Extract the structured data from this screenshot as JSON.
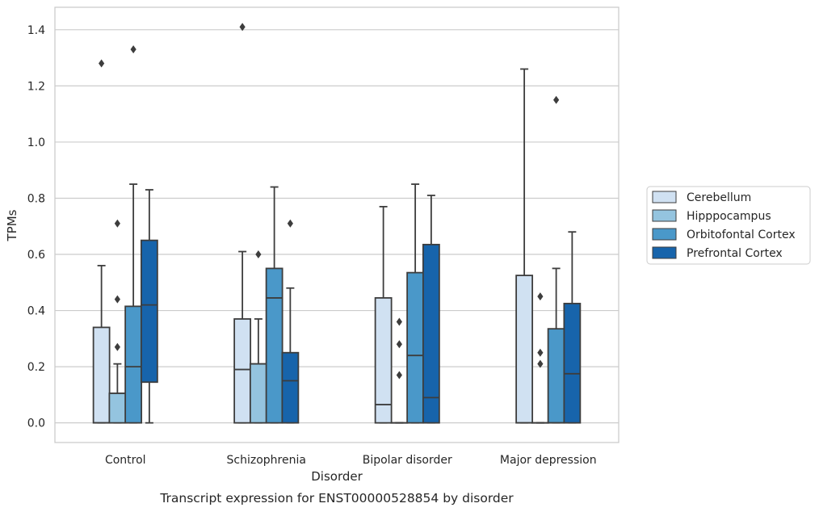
{
  "caption": "Transcript expression for ENST00000528854 by disorder",
  "chart_data": {
    "type": "box",
    "xlabel": "Disorder",
    "ylabel": "TPMs",
    "ylim": [
      -0.07,
      1.48
    ],
    "yticks": [
      "0.0",
      "0.2",
      "0.4",
      "0.6",
      "0.8",
      "1.0",
      "1.2",
      "1.4"
    ],
    "ytick_values": [
      0.0,
      0.2,
      0.4,
      0.6,
      0.8,
      1.0,
      1.2,
      1.4
    ],
    "grid": "horizontal",
    "legend_position": "right",
    "categories": [
      "Control",
      "Schizophrenia",
      "Bipolar disorder",
      "Major depression"
    ],
    "series": [
      {
        "name": "Cerebellum",
        "color": "#d0e1f2",
        "boxes": [
          {
            "whislo": 0.0,
            "q1": 0.0,
            "med": 0.0,
            "q3": 0.34,
            "whishi": 0.56,
            "fliers": [
              1.28
            ]
          },
          {
            "whislo": 0.0,
            "q1": 0.0,
            "med": 0.19,
            "q3": 0.37,
            "whishi": 0.61,
            "fliers": [
              1.41
            ]
          },
          {
            "whislo": 0.0,
            "q1": 0.0,
            "med": 0.065,
            "q3": 0.445,
            "whishi": 0.77,
            "fliers": []
          },
          {
            "whislo": 0.0,
            "q1": 0.0,
            "med": 0.0,
            "q3": 0.525,
            "whishi": 1.26,
            "fliers": []
          }
        ]
      },
      {
        "name": "Hipppocampus",
        "color": "#94c4df",
        "boxes": [
          {
            "whislo": 0.0,
            "q1": 0.0,
            "med": 0.105,
            "q3": 0.105,
            "whishi": 0.21,
            "fliers": [
              0.27,
              0.44,
              0.71
            ]
          },
          {
            "whislo": 0.0,
            "q1": 0.0,
            "med": 0.21,
            "q3": 0.21,
            "whishi": 0.37,
            "fliers": [
              0.6
            ]
          },
          {
            "whislo": 0.0,
            "q1": 0.0,
            "med": 0.0,
            "q3": 0.0,
            "whishi": 0.0,
            "fliers": [
              0.17,
              0.28,
              0.36
            ]
          },
          {
            "whislo": 0.0,
            "q1": 0.0,
            "med": 0.0,
            "q3": 0.0,
            "whishi": 0.0,
            "fliers": [
              0.21,
              0.25,
              0.45
            ]
          }
        ]
      },
      {
        "name": "Orbitofontal Cortex",
        "color": "#4a98c9",
        "boxes": [
          {
            "whislo": 0.0,
            "q1": 0.0,
            "med": 0.2,
            "q3": 0.415,
            "whishi": 0.85,
            "fliers": [
              1.33
            ]
          },
          {
            "whislo": 0.0,
            "q1": 0.0,
            "med": 0.445,
            "q3": 0.55,
            "whishi": 0.84,
            "fliers": []
          },
          {
            "whislo": 0.0,
            "q1": 0.0,
            "med": 0.24,
            "q3": 0.535,
            "whishi": 0.85,
            "fliers": []
          },
          {
            "whislo": 0.0,
            "q1": 0.0,
            "med": 0.0,
            "q3": 0.335,
            "whishi": 0.55,
            "fliers": [
              1.15
            ]
          }
        ]
      },
      {
        "name": "Prefrontal Cortex",
        "color": "#1764ab",
        "boxes": [
          {
            "whislo": 0.0,
            "q1": 0.145,
            "med": 0.42,
            "q3": 0.65,
            "whishi": 0.83,
            "fliers": []
          },
          {
            "whislo": 0.0,
            "q1": 0.0,
            "med": 0.15,
            "q3": 0.25,
            "whishi": 0.48,
            "fliers": [
              0.71
            ]
          },
          {
            "whislo": 0.0,
            "q1": 0.0,
            "med": 0.09,
            "q3": 0.635,
            "whishi": 0.81,
            "fliers": []
          },
          {
            "whislo": 0.0,
            "q1": 0.0,
            "med": 0.175,
            "q3": 0.425,
            "whishi": 0.68,
            "fliers": []
          }
        ]
      }
    ]
  }
}
